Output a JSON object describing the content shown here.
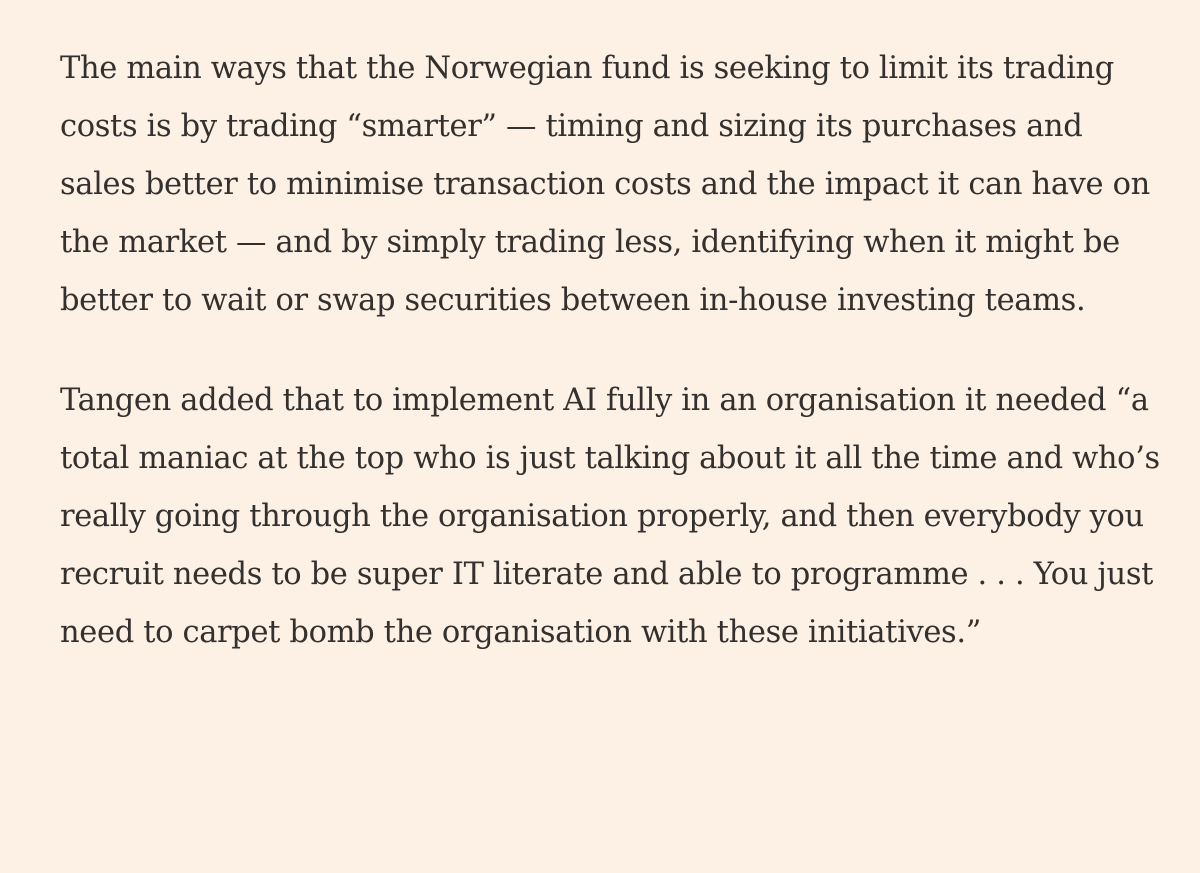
{
  "article": {
    "background_color": "#fdf1e6",
    "text_color": "#33302e",
    "paragraphs": [
      "The main ways that the Norwegian fund is seeking to limit its trading costs is by trading “smarter” — timing and sizing its purchases and sales better to minimise transaction costs and the impact it can have on the market — and by simply trading less, identifying when it might be better to wait or swap securities between in-house investing teams.",
      "Tangen added that to implement AI fully in an organisation it needed “a total maniac at the top who is just talking about it all the time and who’s really going through the organisation properly, and then everybody you recruit needs to be super IT literate and able to programme . . . You just need to carpet bomb the organisation with these initiatives.”"
    ]
  }
}
